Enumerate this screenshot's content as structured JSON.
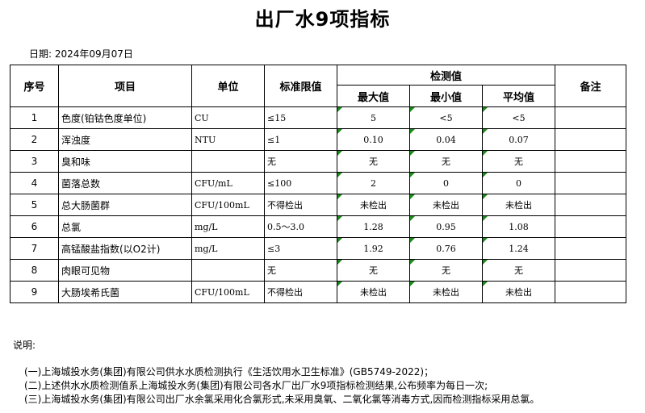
{
  "title": "出厂水9项指标",
  "date": "日期: 2024年09月07日",
  "headers": {
    "no": "序号",
    "item": "项目",
    "unit": "单位",
    "limit": "标准限值",
    "detect": "检测值",
    "max": "最大值",
    "min": "最小值",
    "avg": "平均值",
    "remark": "备注"
  },
  "rows": [
    {
      "no": "1",
      "item": "色度(铂钴色度单位)",
      "unit": "CU",
      "limit": "≤15",
      "max": "5",
      "min": "<5",
      "avg": "<5",
      "remark": ""
    },
    {
      "no": "2",
      "item": "浑浊度",
      "unit": "NTU",
      "limit": "≤1",
      "max": "0.10",
      "min": "0.04",
      "avg": "0.07",
      "remark": ""
    },
    {
      "no": "3",
      "item": "臭和味",
      "unit": "",
      "limit": "无",
      "max": "无",
      "min": "无",
      "avg": "无",
      "remark": ""
    },
    {
      "no": "4",
      "item": "菌落总数",
      "unit": "CFU/mL",
      "limit": "≤100",
      "max": "2",
      "min": "0",
      "avg": "0",
      "remark": ""
    },
    {
      "no": "5",
      "item": "总大肠菌群",
      "unit": "CFU/100mL",
      "limit": "不得检出",
      "max": "未检出",
      "min": "未检出",
      "avg": "未检出",
      "remark": ""
    },
    {
      "no": "6",
      "item": "总氯",
      "unit": "mg/L",
      "limit": "0.5～3.0",
      "max": "1.28",
      "min": "0.95",
      "avg": "1.08",
      "remark": ""
    },
    {
      "no": "7",
      "item": "高锰酸盐指数(以O2计)",
      "unit": "mg/L",
      "limit": "≤3",
      "max": "1.92",
      "min": "0.76",
      "avg": "1.24",
      "remark": ""
    },
    {
      "no": "8",
      "item": "肉眼可见物",
      "unit": "",
      "limit": "无",
      "max": "无",
      "min": "无",
      "avg": "无",
      "remark": ""
    },
    {
      "no": "9",
      "item": "大肠埃希氏菌",
      "unit": "CFU/100mL",
      "limit": "不得检出",
      "max": "未检出",
      "min": "未检出",
      "avg": "未检出",
      "remark": ""
    }
  ],
  "notes": {
    "label": "说明:",
    "items": [
      "(一)上海城投水务(集团)有限公司供水水质检测执行《生活饮用水卫生标准》(GB5749-2022)；",
      "(二)上述供水水质检测值系上海城投水务(集团)有限公司各水厂出厂水9项指标检测结果,公布频率为每日一次;",
      "(三)上海城投水务(集团)有限公司出厂水余氯采用化合氯形式,未采用臭氧、二氧化氯等消毒方式,因而检测指标采用总氯。"
    ]
  }
}
